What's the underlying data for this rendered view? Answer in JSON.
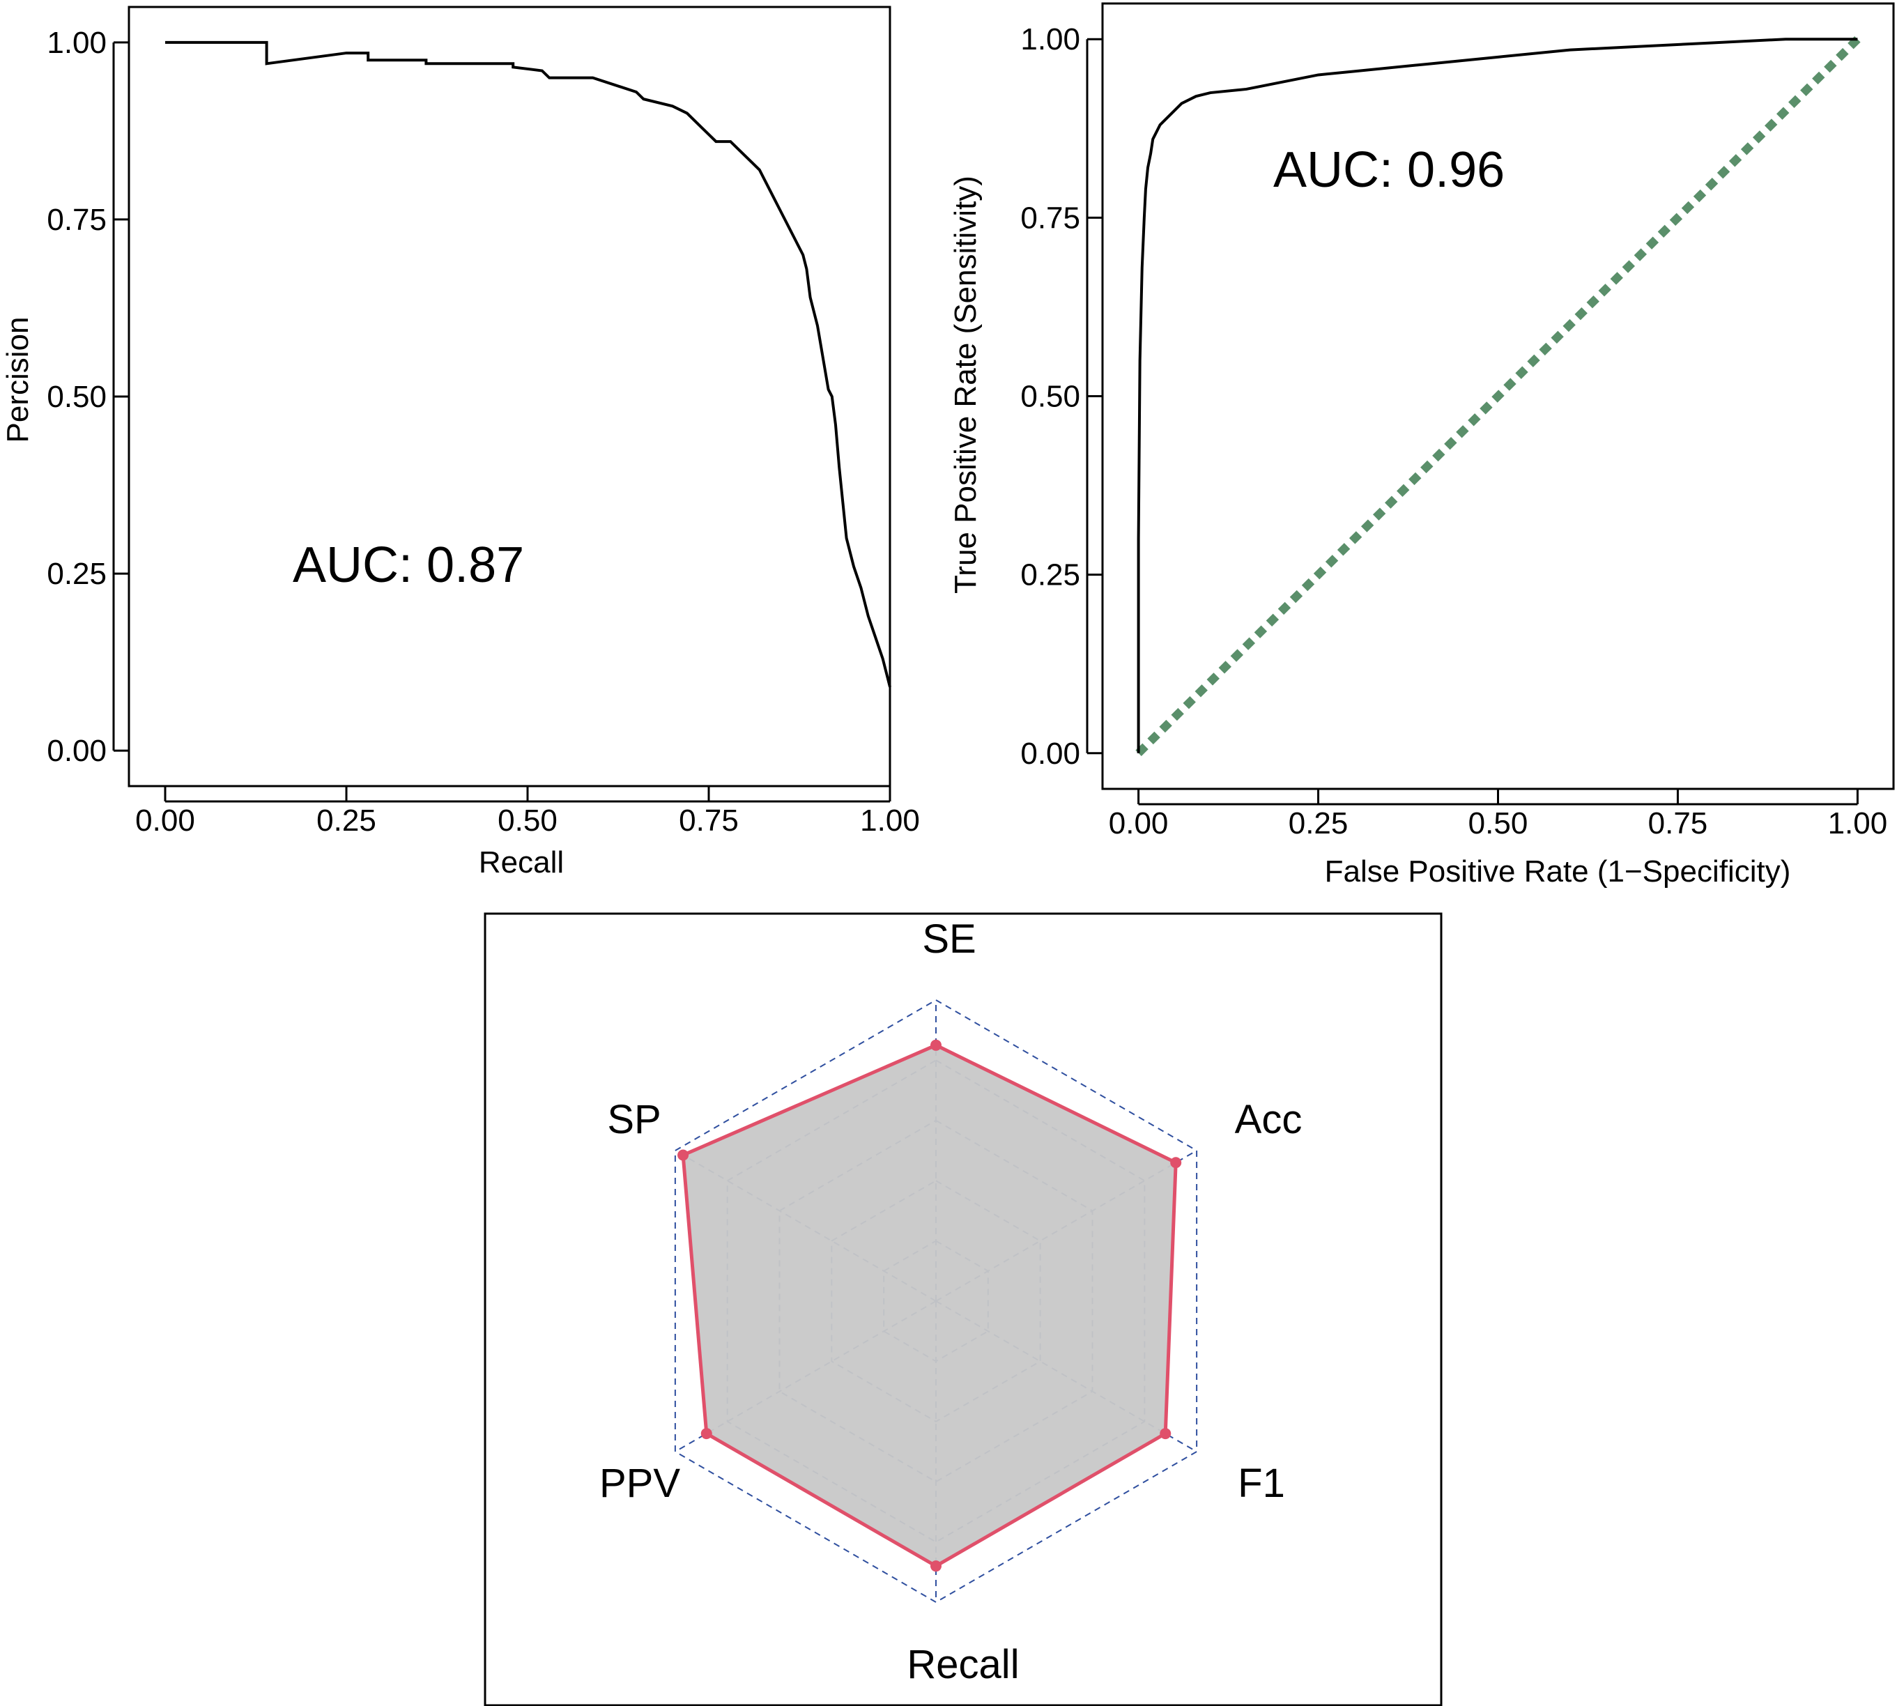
{
  "colors": {
    "curve": "#000000",
    "chance_line": "#5a8f6a",
    "radar_grid": "#2f4f9f",
    "radar_series": "#e0506a",
    "radar_fill": "#c8c8c8"
  },
  "chart_data": [
    {
      "type": "line",
      "title": "",
      "xlabel": "Recall",
      "ylabel": "Percision",
      "xlim": [
        -0.05,
        1.0
      ],
      "ylim": [
        -0.05,
        1.05
      ],
      "xticks": [
        "0.00",
        "0.25",
        "0.50",
        "0.75",
        "1.00"
      ],
      "yticks": [
        "0.00",
        "0.25",
        "0.50",
        "0.75",
        "1.00"
      ],
      "annotation": "AUC: 0.87",
      "grid": false,
      "series": [
        {
          "x": [
            0.0,
            0.14,
            0.14,
            0.25,
            0.28,
            0.28,
            0.36,
            0.36,
            0.48,
            0.48,
            0.52,
            0.53,
            0.59,
            0.62,
            0.65,
            0.66,
            0.7,
            0.72,
            0.74,
            0.75,
            0.76,
            0.78,
            0.79,
            0.8,
            0.81,
            0.82,
            0.83,
            0.84,
            0.85,
            0.86,
            0.87,
            0.88,
            0.885,
            0.89,
            0.9,
            0.905,
            0.91,
            0.915,
            0.92,
            0.925,
            0.93,
            0.935,
            0.94,
            0.95,
            0.96,
            0.97,
            0.98,
            0.99,
            1.0
          ],
          "y": [
            1.0,
            1.0,
            0.97,
            0.985,
            0.985,
            0.975,
            0.975,
            0.97,
            0.97,
            0.965,
            0.96,
            0.95,
            0.95,
            0.94,
            0.93,
            0.92,
            0.91,
            0.9,
            0.88,
            0.87,
            0.86,
            0.86,
            0.85,
            0.84,
            0.83,
            0.82,
            0.8,
            0.78,
            0.76,
            0.74,
            0.72,
            0.7,
            0.68,
            0.64,
            0.6,
            0.57,
            0.54,
            0.51,
            0.5,
            0.46,
            0.4,
            0.35,
            0.3,
            0.26,
            0.23,
            0.19,
            0.16,
            0.13,
            0.09
          ]
        }
      ]
    },
    {
      "type": "line",
      "title": "",
      "xlabel": "False Positive Rate (1−Specificity)",
      "ylabel": "True Positive Rate (Sensitivity)",
      "xlim": [
        -0.05,
        1.05
      ],
      "ylim": [
        -0.05,
        1.05
      ],
      "xticks": [
        "0.00",
        "0.25",
        "0.50",
        "0.75",
        "1.00"
      ],
      "yticks": [
        "0.00",
        "0.25",
        "0.50",
        "0.75",
        "1.00"
      ],
      "annotation": "AUC: 0.96",
      "grid": false,
      "series": [
        {
          "x": [
            0.0,
            0.0,
            0.002,
            0.005,
            0.008,
            0.01,
            0.013,
            0.017,
            0.02,
            0.025,
            0.03,
            0.04,
            0.05,
            0.06,
            0.08,
            0.1,
            0.15,
            0.2,
            0.25,
            0.3,
            0.4,
            0.5,
            0.6,
            0.7,
            0.8,
            0.9,
            1.0
          ],
          "y": [
            0.0,
            0.3,
            0.55,
            0.68,
            0.75,
            0.79,
            0.82,
            0.84,
            0.86,
            0.87,
            0.88,
            0.89,
            0.9,
            0.91,
            0.92,
            0.925,
            0.93,
            0.94,
            0.95,
            0.955,
            0.965,
            0.975,
            0.985,
            0.99,
            0.995,
            1.0,
            1.0
          ]
        },
        {
          "x": [
            0.0,
            1.0
          ],
          "y": [
            0.0,
            1.0
          ],
          "style": "dotted"
        }
      ]
    },
    {
      "type": "radar",
      "title": "",
      "axes": [
        "SE",
        "Acc",
        "F1",
        "Recall",
        "PPV",
        "SP"
      ],
      "levels": 5,
      "max": 1.0,
      "series": [
        {
          "values": [
            0.85,
            0.92,
            0.88,
            0.88,
            0.88,
            0.97
          ]
        }
      ]
    }
  ]
}
